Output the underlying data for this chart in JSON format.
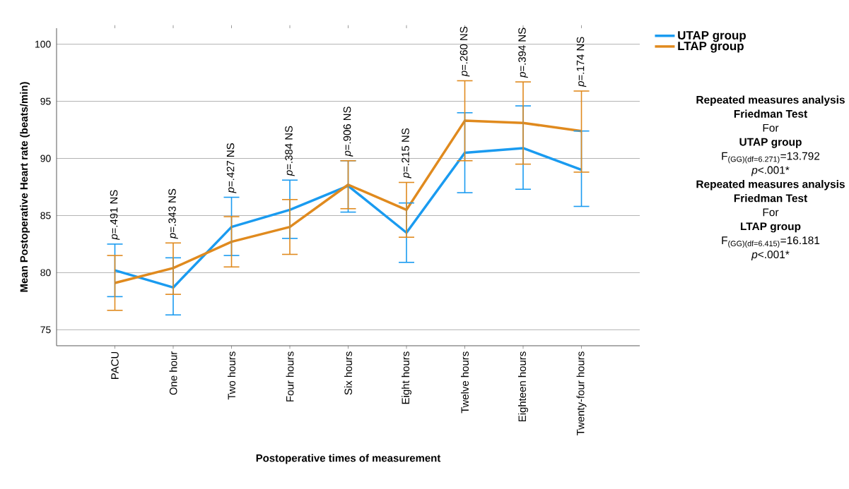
{
  "chart_data": {
    "type": "line",
    "xlabel": "Postoperative times of measurement",
    "ylabel": "Mean Postoperative Heart rate (beats/min)",
    "categories": [
      "PACU",
      "One hour",
      "Two hours",
      "Four hours",
      "Six hours",
      "Eight hours",
      "Twelve hours",
      "Eighteen hours",
      "Twenty-four hours"
    ],
    "series": [
      {
        "name": "UTAP group",
        "color": "#1a9bf0",
        "values": [
          80.2,
          78.7,
          84.0,
          85.5,
          87.6,
          83.5,
          90.5,
          90.9,
          89.0
        ],
        "errors": [
          [
            77.9,
            82.5
          ],
          [
            76.3,
            81.3
          ],
          [
            81.5,
            86.6
          ],
          [
            83.0,
            88.1
          ],
          [
            85.3,
            89.8
          ],
          [
            80.9,
            86.1
          ],
          [
            87.0,
            94.0
          ],
          [
            87.3,
            94.6
          ],
          [
            85.8,
            92.4
          ]
        ]
      },
      {
        "name": "LTAP group",
        "color": "#e08a1e",
        "values": [
          79.1,
          80.4,
          82.7,
          84.0,
          87.7,
          85.5,
          93.3,
          93.1,
          92.4
        ],
        "errors": [
          [
            76.7,
            81.5
          ],
          [
            78.1,
            82.6
          ],
          [
            80.5,
            84.9
          ],
          [
            81.6,
            86.4
          ],
          [
            85.6,
            89.8
          ],
          [
            83.1,
            87.9
          ],
          [
            89.8,
            96.8
          ],
          [
            89.5,
            96.7
          ],
          [
            88.8,
            95.9
          ]
        ]
      }
    ],
    "ylim": [
      73.6,
      101.4
    ],
    "yticks": [
      75,
      80,
      85,
      90,
      95,
      100
    ],
    "grid": "y",
    "legend": "top right",
    "annotations": [
      "*p*=.491 NS",
      "*p*=.343 NS",
      "*p*=.427 NS",
      "*p*=.384 NS",
      "*p*=.906 NS",
      "*p*=.215 NS",
      "*p*=.260 NS",
      "*p*=.394 NS",
      "*p*=.174 NS",
      "**Repeated measures analysis**",
      "**Friedman Test**",
      "For",
      "**UTAP group**",
      "F$_{(GG)(df=6.271)}$=13.792",
      "*p*<.001*",
      "**Repeated measures analysis**",
      "**Friedman Test**",
      "For",
      "**LTAP group**",
      "F$_{(GG)(df=6.415)}$=16.181",
      "*p*<.001*"
    ]
  }
}
